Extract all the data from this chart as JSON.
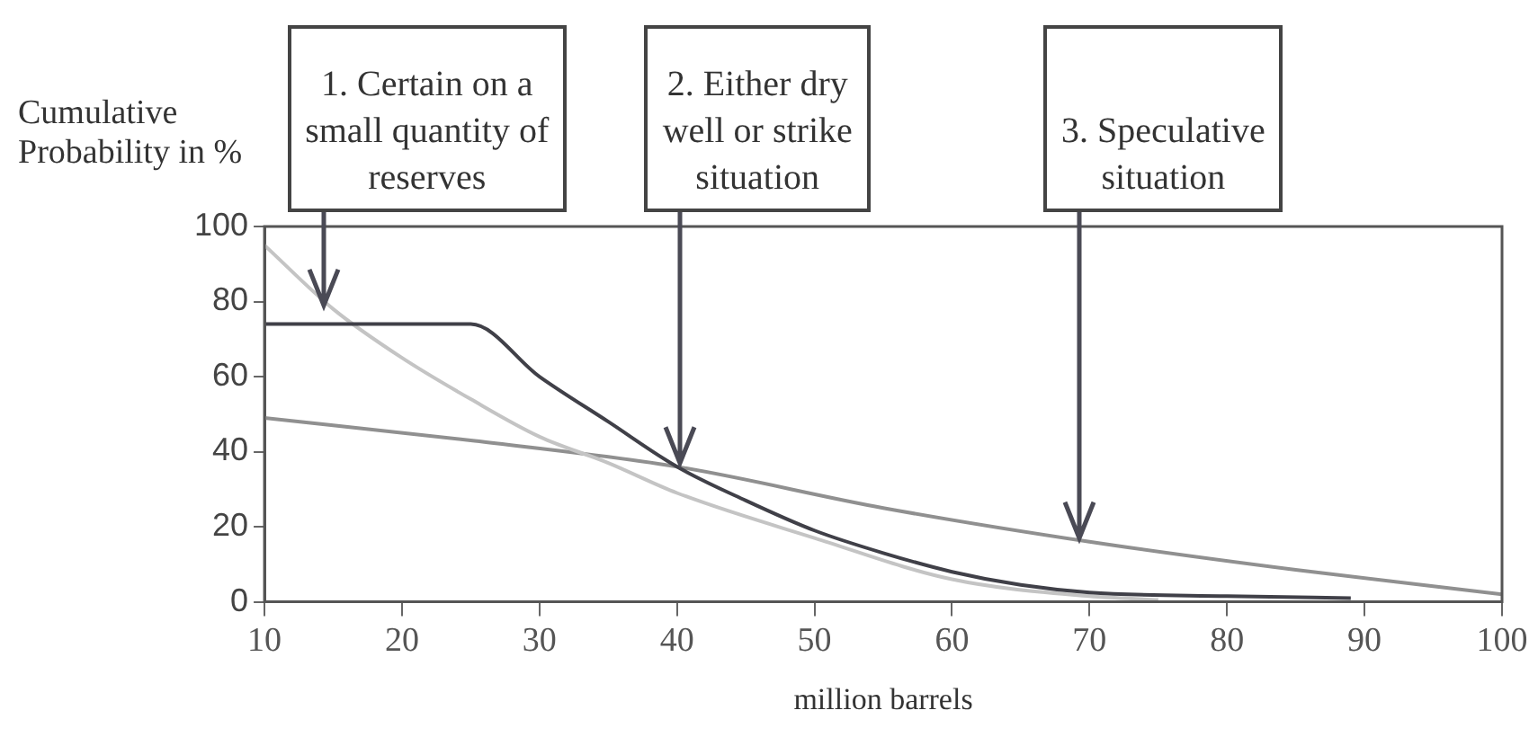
{
  "chart_data": {
    "type": "line",
    "ylabel": "Cumulative\nProbability in %",
    "xlabel": "million barrels",
    "xlim": [
      10,
      100
    ],
    "xticks": [
      10,
      20,
      30,
      40,
      50,
      60,
      70,
      80,
      90,
      100
    ],
    "ylim": [
      0,
      100
    ],
    "yticks": [
      0,
      20,
      40,
      60,
      80,
      100
    ],
    "grid": false,
    "legend": false,
    "marker": "none",
    "line_style": "solid",
    "series": [
      {
        "color": "#404048",
        "x": [
          10,
          20,
          25,
          30,
          35,
          40,
          45,
          50,
          55,
          60,
          65,
          70,
          80,
          89
        ],
        "values": [
          74,
          74,
          74,
          60,
          48,
          36,
          27,
          19,
          13,
          8,
          4.5,
          2.5,
          1.5,
          1
        ]
      },
      {
        "color": "#c4c4c4",
        "x": [
          10,
          15,
          20,
          25,
          30,
          35,
          40,
          50,
          60,
          70,
          75
        ],
        "values": [
          95,
          78,
          65,
          54,
          44,
          37,
          29,
          17,
          6,
          1.5,
          0.5
        ]
      },
      {
        "color": "#909090",
        "x": [
          10,
          25,
          40,
          55,
          70,
          85,
          100
        ],
        "values": [
          49,
          43,
          36,
          25,
          16,
          8.5,
          2
        ]
      }
    ],
    "annotations": [
      {
        "text": "1. Certain on a\nsmall quantity of\nreserves",
        "x": 14,
        "y": 78
      },
      {
        "text": "2. Either dry\nwell or strike\nsituation",
        "x": 40,
        "y": 36
      },
      {
        "text": "3. Speculative\nsituation",
        "x": 69,
        "y": 16
      }
    ]
  }
}
